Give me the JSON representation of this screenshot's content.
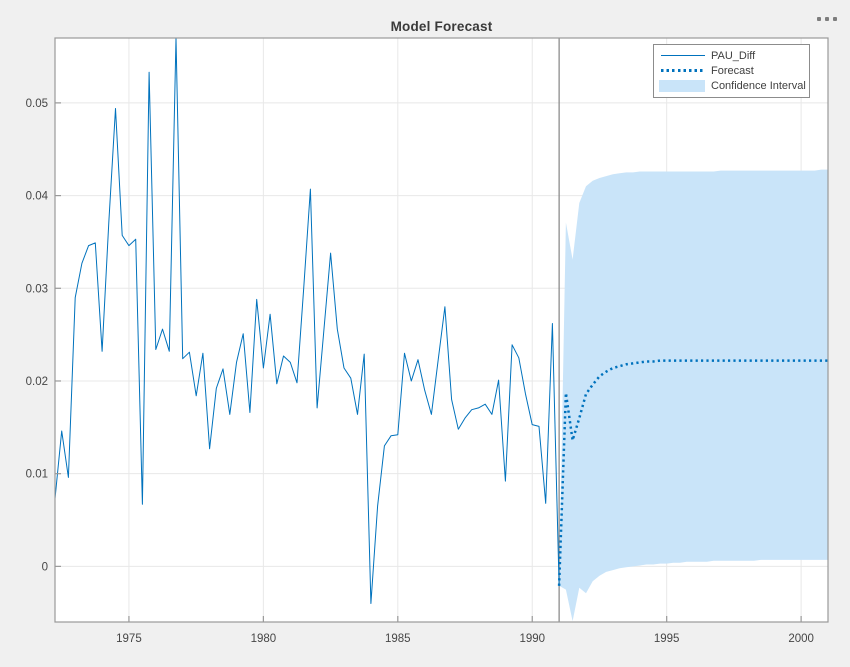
{
  "header": {
    "title": "Model Forecast",
    "menu_icon": "horizontal-ellipsis"
  },
  "legend": {
    "position": "top-right",
    "entries": [
      {
        "label": "PAU_Diff",
        "style": "line"
      },
      {
        "label": "Forecast",
        "style": "dotted"
      },
      {
        "label": "Confidence Interval",
        "style": "patch"
      }
    ]
  },
  "chart_data": {
    "type": "line",
    "title": "Model Forecast",
    "xlabel": "",
    "ylabel": "",
    "xlim": [
      1972.25,
      2001.0
    ],
    "ylim": [
      -0.006,
      0.057
    ],
    "x_ticks": [
      1975,
      1980,
      1985,
      1990,
      1995,
      2000
    ],
    "x_tick_labels": [
      "1975",
      "1980",
      "1985",
      "1990",
      "1995",
      "2000"
    ],
    "y_ticks": [
      0,
      0.01,
      0.02,
      0.03,
      0.04,
      0.05
    ],
    "y_tick_labels": [
      "0",
      "0.01",
      "0.02",
      "0.03",
      "0.04",
      "0.05"
    ],
    "grid": true,
    "forecast_divider_x": 1991,
    "colors": {
      "line": "#0072BD",
      "forecast": "#0072BD",
      "confidence_fill": "#C9E4F9",
      "grid": "#E8E8E8",
      "axis": "#999999",
      "divider": "#8C8C8C",
      "tick_text": "#464646",
      "plot_background": "#FFFFFF",
      "figure_background": "#F0F0F0"
    },
    "series": [
      {
        "name": "PAU_Diff",
        "type": "line",
        "x_start": 1972.25,
        "x_step": 0.25,
        "values": [
          0.0073,
          0.0146,
          0.0096,
          0.029,
          0.0327,
          0.0346,
          0.0349,
          0.0232,
          0.0371,
          0.0494,
          0.0357,
          0.0346,
          0.0353,
          0.0067,
          0.0533,
          0.0234,
          0.0256,
          0.0232,
          0.057,
          0.0224,
          0.0231,
          0.0184,
          0.023,
          0.0127,
          0.0192,
          0.0213,
          0.0164,
          0.022,
          0.0251,
          0.0166,
          0.0288,
          0.0214,
          0.0272,
          0.0197,
          0.0227,
          0.022,
          0.0198,
          0.03,
          0.0407,
          0.0171,
          0.0255,
          0.0338,
          0.0256,
          0.0214,
          0.0203,
          0.0164,
          0.0229,
          -0.004,
          0.0065,
          0.013,
          0.0141,
          0.0142,
          0.023,
          0.02,
          0.0223,
          0.019,
          0.0164,
          0.0222,
          0.028,
          0.018,
          0.0148,
          0.016,
          0.0169,
          0.0171,
          0.0175,
          0.0164,
          0.0201,
          0.0092,
          0.0239,
          0.0225,
          0.0186,
          0.0153,
          0.0151,
          0.0068,
          0.0262,
          -0.0021
        ]
      },
      {
        "name": "Forecast",
        "type": "dotted-line",
        "x_start": 1991.0,
        "x_step": 0.25,
        "values": [
          -0.0021,
          0.0187,
          0.0136,
          0.016,
          0.0186,
          0.0196,
          0.0205,
          0.021,
          0.0214,
          0.0216,
          0.0218,
          0.0219,
          0.022,
          0.0221,
          0.0221,
          0.0222,
          0.0222,
          0.0222,
          0.0222,
          0.0222,
          0.0222,
          0.0222,
          0.0222,
          0.0222,
          0.0222,
          0.0222,
          0.0222,
          0.0222,
          0.0222,
          0.0222,
          0.0222,
          0.0222,
          0.0222,
          0.0222,
          0.0222,
          0.0222,
          0.0222,
          0.0222,
          0.0222,
          0.0222,
          0.0222
        ]
      },
      {
        "name": "Confidence Interval",
        "type": "band",
        "x_start": 1991.0,
        "x_step": 0.25,
        "lower": [
          -0.0021,
          -0.0025,
          -0.0059,
          -0.0023,
          -0.0029,
          -0.0016,
          -0.001,
          -0.0006,
          -0.0004,
          -0.0002,
          -0.0001,
          0.0,
          0.0001,
          0.0002,
          0.0002,
          0.0003,
          0.0003,
          0.0004,
          0.0004,
          0.0005,
          0.0005,
          0.0005,
          0.0005,
          0.0006,
          0.0006,
          0.0006,
          0.0006,
          0.0006,
          0.0006,
          0.0006,
          0.0007,
          0.0007,
          0.0007,
          0.0007,
          0.0007,
          0.0007,
          0.0007,
          0.0007,
          0.0007,
          0.0007,
          0.0007
        ],
        "upper": [
          -0.0021,
          0.0371,
          0.0331,
          0.0392,
          0.041,
          0.0416,
          0.0419,
          0.0421,
          0.0423,
          0.0424,
          0.0425,
          0.0425,
          0.0426,
          0.0426,
          0.0426,
          0.0426,
          0.0426,
          0.0426,
          0.0426,
          0.0426,
          0.0426,
          0.0426,
          0.0426,
          0.0426,
          0.0427,
          0.0427,
          0.0427,
          0.0427,
          0.0427,
          0.0427,
          0.0427,
          0.0427,
          0.0427,
          0.0427,
          0.0427,
          0.0427,
          0.0427,
          0.0427,
          0.0427,
          0.0428,
          0.0428
        ]
      }
    ]
  }
}
